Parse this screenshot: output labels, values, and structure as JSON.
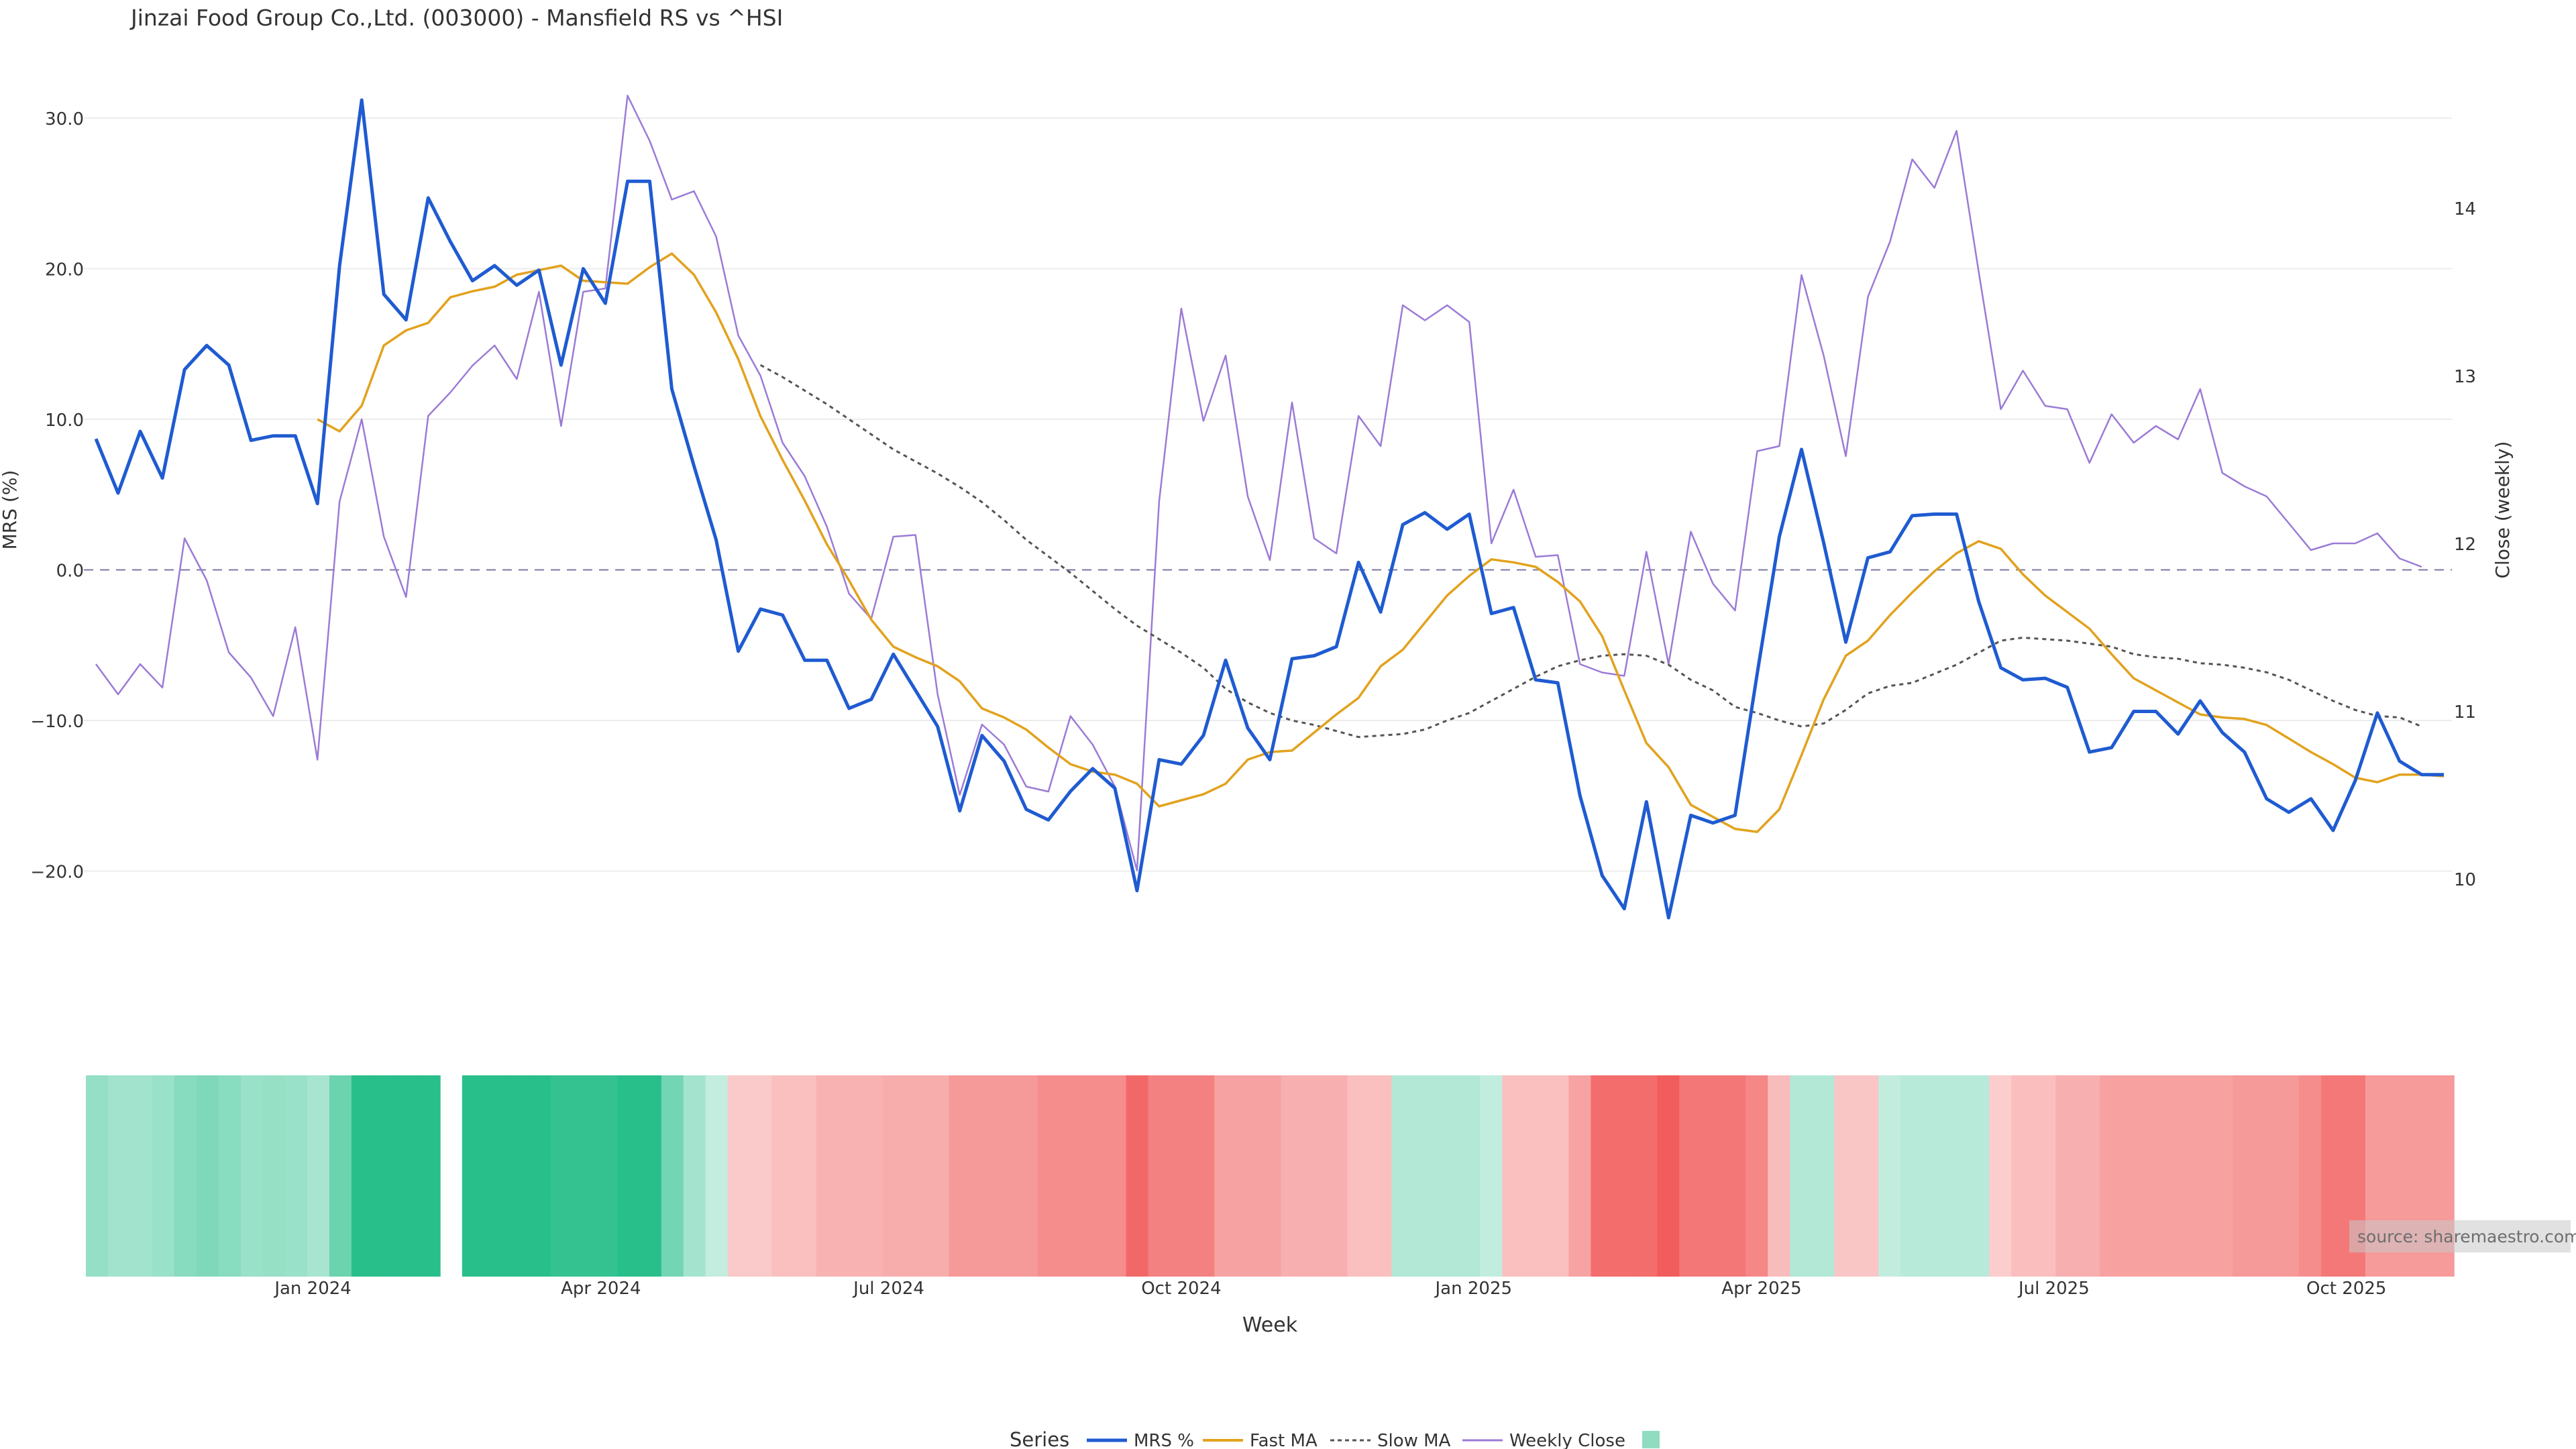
{
  "chart_data": {
    "type": "line",
    "title": "Jinzai Food Group Co.,Ltd. (003000) - Mansfield RS vs ^HSI",
    "xlabel": "Week",
    "ylabel_left": "MRS (%)",
    "ylabel_right": "Close (weekly)",
    "left_axis": {
      "min": -30,
      "max": 33,
      "ticks": [
        30,
        20,
        10,
        0,
        -10,
        -20
      ],
      "tick_labels": [
        "30.0",
        "20.0",
        "10.0",
        "0.0",
        "−10.0",
        "−20.0"
      ]
    },
    "right_axis": {
      "min": 9.25,
      "max": 14.75,
      "ticks": [
        14,
        13,
        12,
        11,
        10
      ],
      "tick_labels": [
        "14",
        "13",
        "12",
        "11",
        "10"
      ]
    },
    "x_range": {
      "start": "2023-10-26",
      "end": "2025-10-30",
      "weeks": 107
    },
    "x_ticks": [
      "Jan 2024",
      "Apr 2024",
      "Jul 2024",
      "Oct 2024",
      "Jan 2025",
      "Apr 2025",
      "Jul 2025",
      "Oct 2025"
    ],
    "x_tick_weeks": [
      9.8,
      22.8,
      35.8,
      49,
      62.2,
      75.2,
      88.4,
      101.6
    ],
    "zero_line": 0,
    "gap_weeks": [
      16.3,
      17.3
    ],
    "series": [
      {
        "name": "MRS %",
        "color": "#1f5bd1",
        "values": [
          8.7,
          5.1,
          9.2,
          6.1,
          13.3,
          14.9,
          13.6,
          8.6,
          8.9,
          8.9,
          4.4,
          20.2,
          31.2,
          18.3,
          16.6,
          24.7,
          21.8,
          19.2,
          20.2,
          18.9,
          19.9,
          13.6,
          20.0,
          17.7,
          25.8,
          25.8,
          12.0,
          6.9,
          2.0,
          -5.4,
          -2.6,
          -3.0,
          -6.0,
          -6.0,
          -9.2,
          -8.6,
          -5.6,
          -8.0,
          -10.4,
          -16.0,
          -11.0,
          -12.7,
          -15.9,
          -16.6,
          -14.7,
          -13.2,
          -14.5,
          -21.3,
          -12.6,
          -12.9,
          -11.0,
          -6.0,
          -10.5,
          -12.6,
          -5.9,
          -5.7,
          -5.1,
          0.5,
          -2.8,
          3.0,
          3.8,
          2.7,
          3.7,
          -2.9,
          -2.5,
          -7.3,
          -7.5,
          -15.0,
          -20.3,
          -22.5,
          -15.4,
          -23.1,
          -16.3,
          -16.8,
          -16.3,
          -6.9,
          2.2,
          8.0,
          1.8,
          -4.8,
          0.8,
          1.2,
          3.6,
          3.7,
          3.7,
          -2.1,
          -6.5,
          -7.3,
          -7.2,
          -7.8,
          -12.1,
          -11.8,
          -9.4,
          -9.4,
          -10.9,
          -8.7,
          -10.8,
          -12.1,
          -15.2,
          -16.1,
          -15.2,
          -17.3,
          -14.0,
          -9.5,
          -12.7,
          -13.6,
          -13.6
        ]
      },
      {
        "name": "Fast MA",
        "color": "#e2a21e",
        "start_index": 10,
        "values": [
          10.0,
          9.2,
          10.9,
          14.9,
          15.9,
          16.4,
          18.1,
          18.5,
          18.8,
          19.6,
          19.9,
          20.2,
          19.2,
          19.1,
          19.0,
          20.1,
          21.0,
          19.6,
          17.1,
          14.0,
          10.2,
          7.3,
          4.6,
          1.7,
          -0.7,
          -3.3,
          -5.1,
          -5.8,
          -6.4,
          -7.4,
          -9.2,
          -9.8,
          -10.6,
          -11.8,
          -12.9,
          -13.4,
          -13.6,
          -14.2,
          -15.7,
          -15.3,
          -14.9,
          -14.2,
          -12.6,
          -12.1,
          -12.0,
          -10.8,
          -9.6,
          -8.5,
          -6.4,
          -5.3,
          -3.5,
          -1.7,
          -0.4,
          0.7,
          0.5,
          0.2,
          -0.8,
          -2.1,
          -4.4,
          -8.0,
          -11.5,
          -13.1,
          -15.6,
          -16.4,
          -17.2,
          -17.4,
          -15.9,
          -12.3,
          -8.6,
          -5.7,
          -4.7,
          -3.0,
          -1.5,
          -0.1,
          1.1,
          1.9,
          1.4,
          -0.3,
          -1.7,
          -2.8,
          -3.9,
          -5.6,
          -7.2,
          -8.0,
          -8.8,
          -9.6,
          -9.8,
          -9.9,
          -10.3,
          -11.2,
          -12.1,
          -12.9,
          -13.8,
          -14.1,
          -13.6,
          -13.6,
          -13.7
        ]
      },
      {
        "name": "Slow MA",
        "color": "#555555",
        "start_index": 30,
        "values": [
          13.6,
          12.8,
          11.9,
          11.0,
          10.0,
          9.0,
          8.0,
          7.2,
          6.4,
          5.5,
          4.5,
          3.3,
          2.0,
          0.9,
          -0.2,
          -1.4,
          -2.6,
          -3.7,
          -4.6,
          -5.5,
          -6.5,
          -7.9,
          -8.8,
          -9.5,
          -10.0,
          -10.3,
          -10.7,
          -11.1,
          -11.0,
          -10.9,
          -10.6,
          -10.0,
          -9.5,
          -8.7,
          -7.9,
          -7.1,
          -6.4,
          -6.0,
          -5.7,
          -5.6,
          -5.7,
          -6.3,
          -7.3,
          -8.0,
          -9.1,
          -9.5,
          -10.0,
          -10.4,
          -10.2,
          -9.3,
          -8.2,
          -7.7,
          -7.5,
          -6.9,
          -6.3,
          -5.5,
          -4.7,
          -4.5,
          -4.6,
          -4.7,
          -4.9,
          -5.1,
          -5.6,
          -5.8,
          -5.9,
          -6.2,
          -6.3,
          -6.5,
          -6.8,
          -7.3,
          -8.0,
          -8.7,
          -9.3,
          -9.7,
          -9.8,
          -10.4
        ]
      },
      {
        "name": "Weekly Close",
        "color": "#9b7bd6",
        "axis": "right",
        "values": [
          11.28,
          11.1,
          11.28,
          11.14,
          12.03,
          11.78,
          11.35,
          11.2,
          10.97,
          11.5,
          10.71,
          12.25,
          12.74,
          12.04,
          11.68,
          12.76,
          12.9,
          13.06,
          13.18,
          12.98,
          13.5,
          12.7,
          13.5,
          13.52,
          14.67,
          14.4,
          14.05,
          14.1,
          13.83,
          13.24,
          13.0,
          12.6,
          12.4,
          12.1,
          11.7,
          11.55,
          12.04,
          12.05,
          11.1,
          10.5,
          10.92,
          10.8,
          10.55,
          10.52,
          10.97,
          10.8,
          10.55,
          10.05,
          12.25,
          13.4,
          12.73,
          13.12,
          12.28,
          11.9,
          12.84,
          12.03,
          11.94,
          12.76,
          12.58,
          13.42,
          13.33,
          13.42,
          13.32,
          12.0,
          12.32,
          11.92,
          11.93,
          11.28,
          11.23,
          11.21,
          11.95,
          11.28,
          12.07,
          11.76,
          11.6,
          12.55,
          12.58,
          13.6,
          13.12,
          12.52,
          13.47,
          13.8,
          14.29,
          14.12,
          14.46,
          13.62,
          12.8,
          13.03,
          12.82,
          12.8,
          12.48,
          12.77,
          12.6,
          12.7,
          12.62,
          12.92,
          12.42,
          12.34,
          12.28,
          12.12,
          11.96,
          12.0,
          12.0,
          12.06,
          11.91,
          11.86
        ]
      }
    ],
    "heatmap_strip": {
      "description": "weekly MRS colour band",
      "values": [
        5.0,
        3.8,
        3.8,
        4.5,
        6.1,
        6.9,
        6.0,
        4.5,
        4.8,
        4.5,
        3.2,
        8.5,
        14.5,
        14.5,
        14.5,
        14.5,
        null,
        17.0,
        17.0,
        17.0,
        17.0,
        13.5,
        13.5,
        13.5,
        15.5,
        15.5,
        8.0,
        3.5,
        0.8,
        -1.2,
        -1.2,
        -2.2,
        -2.2,
        -3.6,
        -3.6,
        -3.6,
        -4.2,
        -4.2,
        -4.2,
        -6.3,
        -6.3,
        -6.3,
        -6.3,
        -7.6,
        -7.6,
        -7.6,
        -7.6,
        -11.5,
        -8.8,
        -8.8,
        -8.8,
        -5.3,
        -5.3,
        -5.3,
        -4.0,
        -4.0,
        -4.0,
        -2.2,
        -2.2,
        2.2,
        2.2,
        2.2,
        2.2,
        0.9,
        -2.1,
        -2.1,
        -2.1,
        -5.2,
        -11.0,
        -11.0,
        -11.0,
        -12.8,
        -9.9,
        -9.9,
        -9.9,
        -8.2,
        -2.6,
        2.2,
        2.2,
        -1.6,
        -1.6,
        0.9,
        1.8,
        1.8,
        1.8,
        1.8,
        -0.8,
        -2.4,
        -2.4,
        -4.0,
        -4.0,
        -5.4,
        -5.4,
        -5.4,
        -5.4,
        -5.4,
        -5.4,
        -6.3,
        -6.3,
        -6.3,
        -7.6,
        -9.8,
        -9.8,
        -6.2,
        -6.2,
        -6.2,
        -6.2
      ]
    },
    "legend": {
      "title": "Series",
      "position": "bottom-center",
      "items": [
        "MRS %",
        "Fast MA",
        "Slow MA",
        "Weekly Close",
        ""
      ]
    },
    "watermark": "source: sharemaestro.com"
  }
}
